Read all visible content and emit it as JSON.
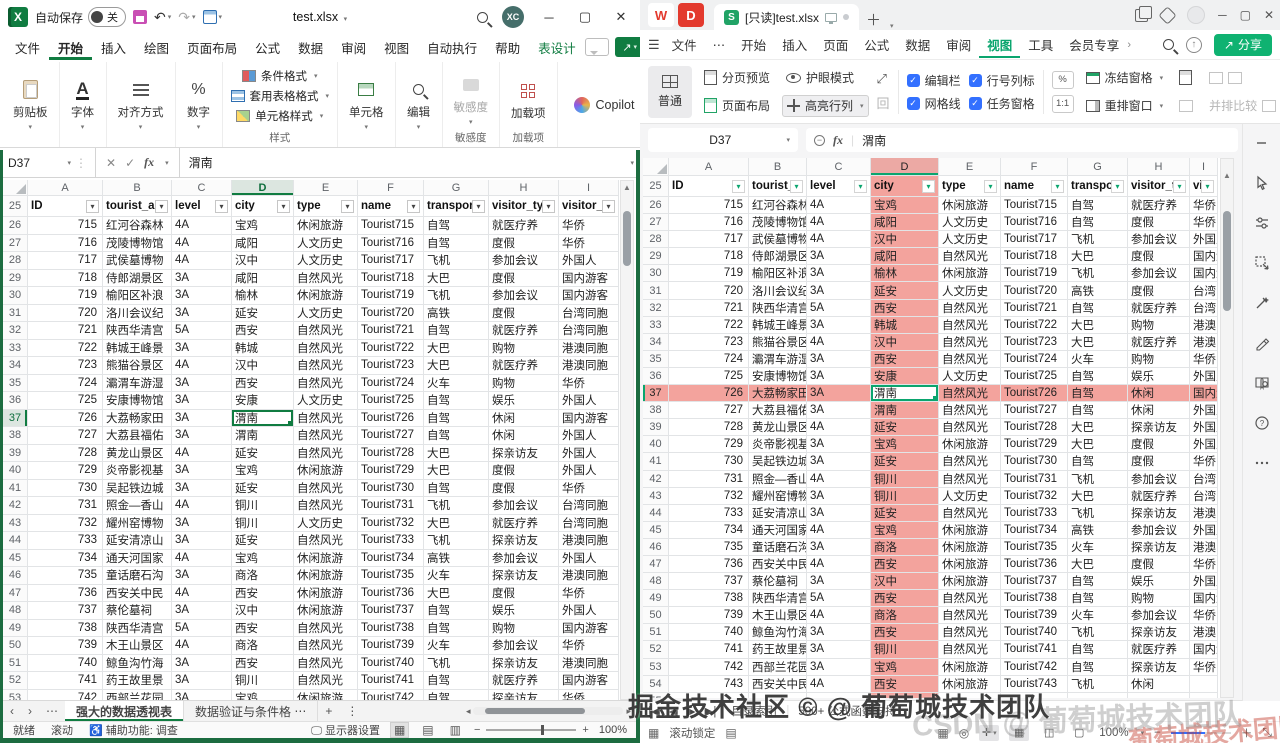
{
  "window_left": {
    "app": "Excel",
    "titlebar": {
      "autosave_label": "自动保存",
      "autosave_state": "关",
      "filename": "test.xlsx",
      "avatar_initials": "XC"
    },
    "menu": {
      "items": [
        "文件",
        "开始",
        "插入",
        "绘图",
        "页面布局",
        "公式",
        "数据",
        "审阅",
        "视图",
        "自动执行",
        "帮助",
        "表设计"
      ],
      "active": "开始",
      "green_item": "表设计"
    },
    "ribbon": {
      "clipboard": "剪贴板",
      "font": "字体",
      "alignment": "对齐方式",
      "number": "数字",
      "cond_format": "条件格式",
      "format_table": "套用表格格式",
      "cell_styles": "单元格样式",
      "styles_group": "样式",
      "cells": "单元格",
      "editing": "编辑",
      "sensitivity": "敏感度",
      "sensitivity_group": "敏感度",
      "addins": "加载项",
      "addins_group": "加载项",
      "copilot": "Copilot"
    },
    "formula_bar": {
      "name_box": "D37",
      "fx": "fx",
      "value": "渭南"
    },
    "sheet_bar": {
      "tabs": [
        "强大的数据透视表",
        "数据验证与条件格"
      ],
      "active_tab": "强大的数据透视表"
    },
    "status_bar": {
      "ready": "就绪",
      "scroll": "滚动",
      "accessibility": "辅助功能: 调查",
      "display_settings": "显示器设置",
      "zoom_level": "100%"
    }
  },
  "window_right": {
    "app": "WPS",
    "tabbar": {
      "doc_title": "[只读]test.xlsx"
    },
    "menu": {
      "file": "文件",
      "items": [
        "开始",
        "插入",
        "页面",
        "公式",
        "数据",
        "审阅",
        "视图",
        "工具",
        "会员专享"
      ],
      "active": "视图",
      "share": "分享"
    },
    "ribbon": {
      "normal": "普通",
      "page_preview": "分页预览",
      "page_layout": "页面布局",
      "eye_mode": "护眼模式",
      "highlight": "高亮行列",
      "checkboxes": [
        "编辑栏",
        "行号列标",
        "网格线",
        "任务窗格"
      ],
      "zoom_box": "%",
      "one_to_one": "1:1",
      "freeze": "冻结窗格",
      "rearrange": "重排窗口",
      "compare": "并排比较"
    },
    "formula_bar": {
      "name_box": "D37",
      "fx": "fx",
      "value": "渭南"
    },
    "sheet_bar": {
      "index": "目录索引",
      "formula_support": "500+ 公式函数支持"
    },
    "status_bar": {
      "scroll_lock": "滚动锁定",
      "zoom_level": "100%"
    },
    "sidebar_icons": [
      "collapse",
      "select-cursor",
      "adjust",
      "selection-pane",
      "tools",
      "sign",
      "read-mode",
      "help",
      "more"
    ]
  },
  "spreadsheet": {
    "selected_cell": "D37",
    "columns": [
      "A",
      "B",
      "C",
      "D",
      "E",
      "F",
      "G",
      "H",
      "I"
    ],
    "header_row_number": 25,
    "headers": [
      "ID",
      "tourist_a",
      "level",
      "city",
      "type",
      "name",
      "transporta",
      "visitor_typ",
      "visitor_sta"
    ],
    "highlight_column": "city",
    "highlight_row": 37,
    "rows": [
      [
        26,
        715,
        "红河谷森林",
        "4A",
        "宝鸡",
        "休闲旅游",
        "Tourist715",
        "自驾",
        "就医疗养",
        "华侨"
      ],
      [
        27,
        716,
        "茂陵博物馆",
        "4A",
        "咸阳",
        "人文历史",
        "Tourist716",
        "自驾",
        "度假",
        "华侨"
      ],
      [
        28,
        717,
        "武侯墓博物",
        "4A",
        "汉中",
        "人文历史",
        "Tourist717",
        "飞机",
        "参加会议",
        "外国人"
      ],
      [
        29,
        718,
        "侍郎湖景区",
        "3A",
        "咸阳",
        "自然风光",
        "Tourist718",
        "大巴",
        "度假",
        "国内游客"
      ],
      [
        30,
        719,
        "榆阳区补浪",
        "3A",
        "榆林",
        "休闲旅游",
        "Tourist719",
        "飞机",
        "参加会议",
        "国内游客"
      ],
      [
        31,
        720,
        "洛川会议纪",
        "3A",
        "延安",
        "人文历史",
        "Tourist720",
        "高铁",
        "度假",
        "台湾同胞"
      ],
      [
        32,
        721,
        "陕西华清宫",
        "5A",
        "西安",
        "自然风光",
        "Tourist721",
        "自驾",
        "就医疗养",
        "台湾同胞"
      ],
      [
        33,
        722,
        "韩城王峰景",
        "3A",
        "韩城",
        "自然风光",
        "Tourist722",
        "大巴",
        "购物",
        "港澳同胞"
      ],
      [
        34,
        723,
        "熊猫谷景区",
        "4A",
        "汉中",
        "自然风光",
        "Tourist723",
        "大巴",
        "就医疗养",
        "港澳同胞"
      ],
      [
        35,
        724,
        "灞渭车游湿",
        "3A",
        "西安",
        "自然风光",
        "Tourist724",
        "火车",
        "购物",
        "华侨"
      ],
      [
        36,
        725,
        "安康博物馆",
        "3A",
        "安康",
        "人文历史",
        "Tourist725",
        "自驾",
        "娱乐",
        "外国人"
      ],
      [
        37,
        726,
        "大荔畅家田",
        "3A",
        "渭南",
        "自然风光",
        "Tourist726",
        "自驾",
        "休闲",
        "国内游客"
      ],
      [
        38,
        727,
        "大荔县福佑",
        "3A",
        "渭南",
        "自然风光",
        "Tourist727",
        "自驾",
        "休闲",
        "外国人"
      ],
      [
        39,
        728,
        "黄龙山景区",
        "4A",
        "延安",
        "自然风光",
        "Tourist728",
        "大巴",
        "探亲访友",
        "外国人"
      ],
      [
        40,
        729,
        "炎帝影视基",
        "3A",
        "宝鸡",
        "休闲旅游",
        "Tourist729",
        "大巴",
        "度假",
        "外国人"
      ],
      [
        41,
        730,
        "吴起铁边城",
        "3A",
        "延安",
        "自然风光",
        "Tourist730",
        "自驾",
        "度假",
        "华侨"
      ],
      [
        42,
        731,
        "照金—香山",
        "4A",
        "铜川",
        "自然风光",
        "Tourist731",
        "飞机",
        "参加会议",
        "台湾同胞"
      ],
      [
        43,
        732,
        "耀州窑博物",
        "3A",
        "铜川",
        "人文历史",
        "Tourist732",
        "大巴",
        "就医疗养",
        "台湾同胞"
      ],
      [
        44,
        733,
        "延安清凉山",
        "3A",
        "延安",
        "自然风光",
        "Tourist733",
        "飞机",
        "探亲访友",
        "港澳同胞"
      ],
      [
        45,
        734,
        "通天河国家",
        "4A",
        "宝鸡",
        "休闲旅游",
        "Tourist734",
        "高铁",
        "参加会议",
        "外国人"
      ],
      [
        46,
        735,
        "童话磨石沟",
        "3A",
        "商洛",
        "休闲旅游",
        "Tourist735",
        "火车",
        "探亲访友",
        "港澳同胞"
      ],
      [
        47,
        736,
        "西安关中民",
        "4A",
        "西安",
        "休闲旅游",
        "Tourist736",
        "大巴",
        "度假",
        "华侨"
      ],
      [
        48,
        737,
        "蔡伦墓祠",
        "3A",
        "汉中",
        "休闲旅游",
        "Tourist737",
        "自驾",
        "娱乐",
        "外国人"
      ],
      [
        49,
        738,
        "陕西华清宫",
        "5A",
        "西安",
        "自然风光",
        "Tourist738",
        "自驾",
        "购物",
        "国内游客"
      ],
      [
        50,
        739,
        "木王山景区",
        "4A",
        "商洛",
        "自然风光",
        "Tourist739",
        "火车",
        "参加会议",
        "华侨"
      ],
      [
        51,
        740,
        "鲸鱼沟竹海",
        "3A",
        "西安",
        "自然风光",
        "Tourist740",
        "飞机",
        "探亲访友",
        "港澳同胞"
      ],
      [
        52,
        741,
        "药王故里景",
        "3A",
        "铜川",
        "自然风光",
        "Tourist741",
        "自驾",
        "就医疗养",
        "国内游客"
      ],
      [
        53,
        742,
        "西部兰花园",
        "3A",
        "宝鸡",
        "休闲旅游",
        "Tourist742",
        "自驾",
        "探亲访友",
        "华侨"
      ],
      [
        54,
        743,
        "西安关中民",
        "4A",
        "西安",
        "休闲旅游",
        "Tourist743",
        "飞机",
        "休闲",
        ""
      ]
    ]
  },
  "watermarks": {
    "primary": "掘金技术社区 © @ 葡萄城技术团队",
    "secondary": "CSDN @ 葡萄城技术团队",
    "accent": "葡萄城技术团队"
  },
  "colors": {
    "excel_green": "#107C41",
    "wps_green": "#0aa56e",
    "highlight_pink": "#f3a39d",
    "checkbox_blue": "#3370ff"
  }
}
